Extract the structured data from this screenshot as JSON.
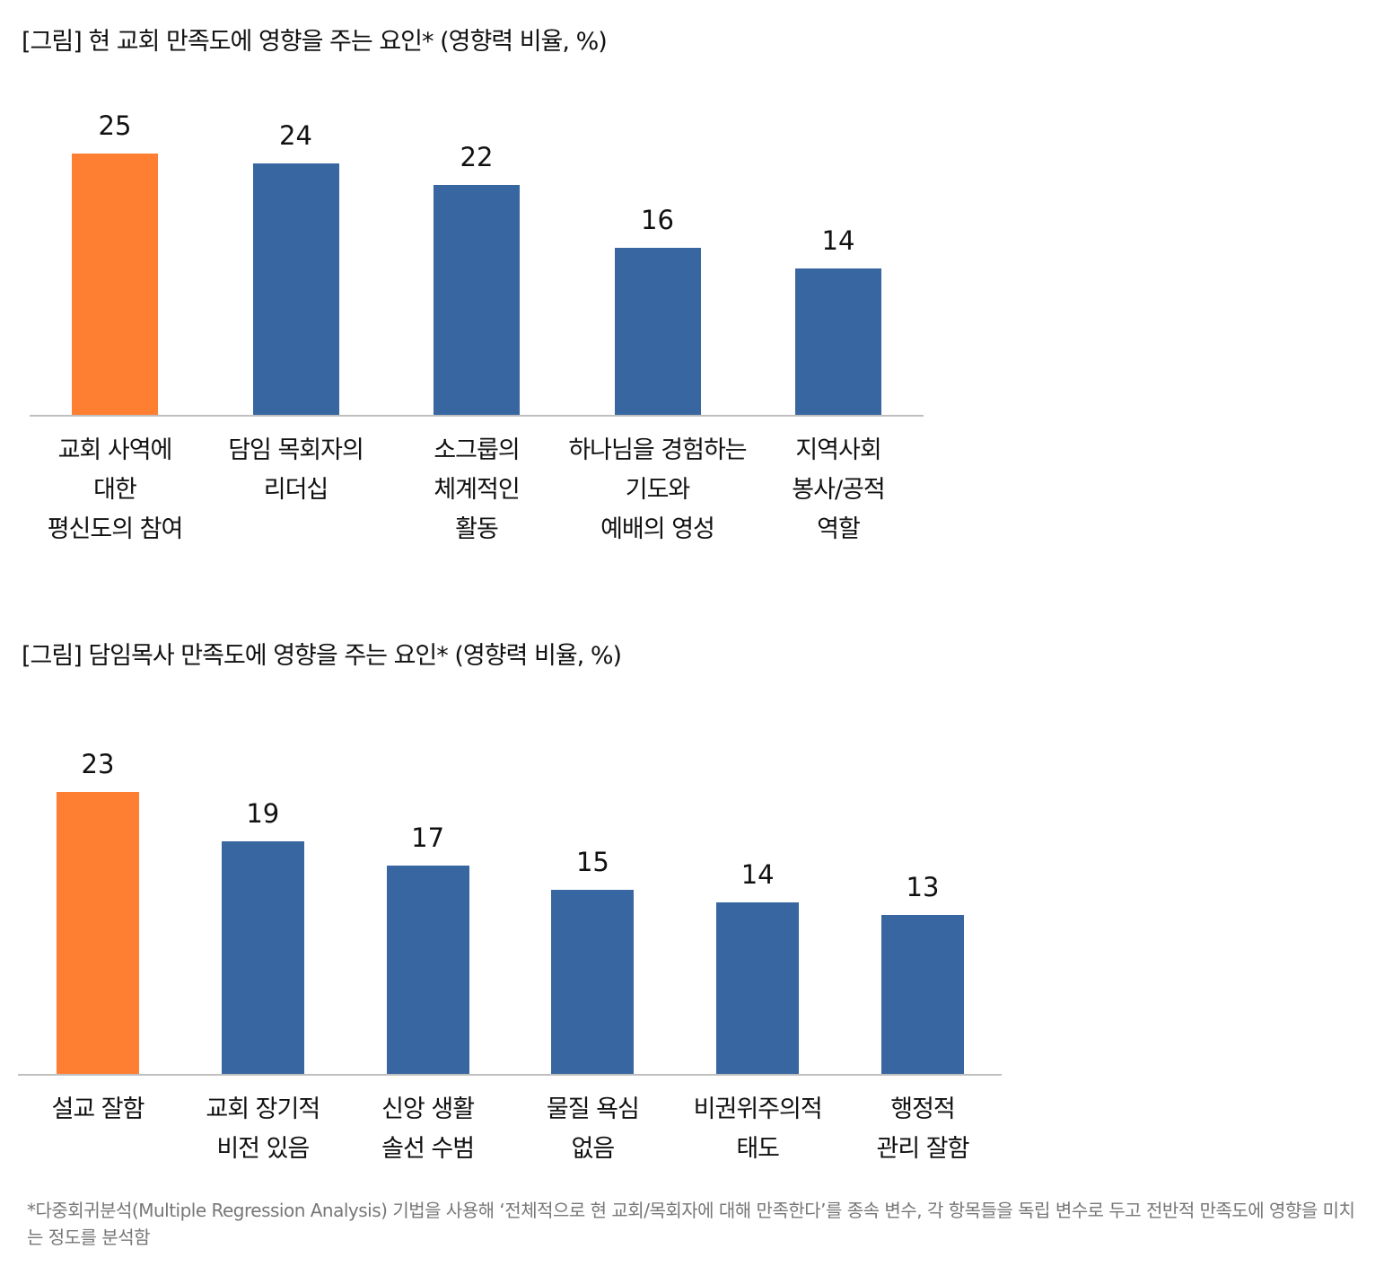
{
  "chart_data": [
    {
      "type": "bar",
      "title": "[그림] 현 교회 만족도에 영향을 주는 요인* (영향력 비율, %)",
      "categories": [
        "교회 사역에\n대한\n평신도의 참여",
        "담임 목회자의\n리더십",
        "소그룹의\n체계적인\n활동",
        "하나님을 경험하는\n기도와\n예배의 영성",
        "지역사회\n봉사/공적\n역할"
      ],
      "values": [
        25,
        24,
        22,
        16,
        14
      ],
      "colors": [
        "#FF7F32",
        "#3766A1",
        "#3766A1",
        "#3766A1",
        "#3766A1"
      ],
      "ylim": [
        0,
        25
      ],
      "grid": false
    },
    {
      "type": "bar",
      "title": "[그림] 담임목사 만족도에 영향을 주는 요인* (영향력 비율, %)",
      "categories": [
        "설교 잘함",
        "교회 장기적\n비전 있음",
        "신앙 생활\n솔선 수범",
        "물질 욕심\n없음",
        "비권위주의적\n태도",
        "행정적\n관리 잘함"
      ],
      "values": [
        23,
        19,
        17,
        15,
        14,
        13
      ],
      "colors": [
        "#FF7F32",
        "#3766A1",
        "#3766A1",
        "#3766A1",
        "#3766A1",
        "#3766A1"
      ],
      "ylim": [
        0,
        23
      ],
      "grid": false
    }
  ],
  "footnote": "*다중회귀분석(Multiple Regression Analysis) 기법을 사용해 ‘전체적으로 현 교회/목회자에 대해 만족한다’를 종속 변수, 각 항목들을 독립 변수로 두고 전반적 만족도에 영향을 미치는 정도를 분석함"
}
